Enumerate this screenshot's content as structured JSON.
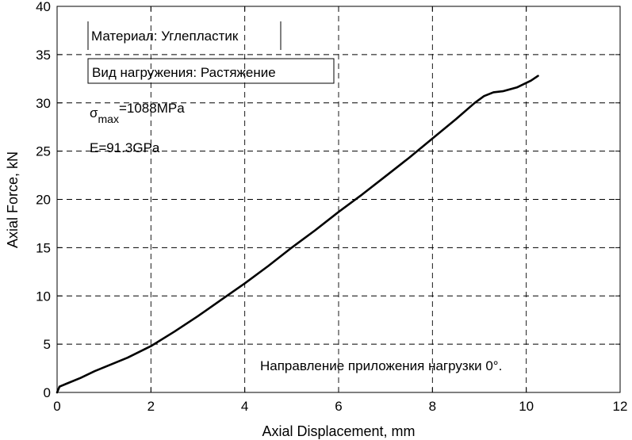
{
  "chart_data": {
    "type": "line",
    "title": "",
    "xlabel": "Axial Displacement, mm",
    "ylabel": "Axial Force, kN",
    "xlim": [
      0,
      12
    ],
    "ylim": [
      0,
      40
    ],
    "x_ticks": [
      0,
      2,
      4,
      6,
      8,
      10,
      12
    ],
    "y_ticks": [
      0,
      5,
      10,
      15,
      20,
      25,
      30,
      35,
      40
    ],
    "grid": true,
    "line_color": "#000000",
    "series": [
      {
        "x": [
          0,
          0.05,
          0.2,
          0.5,
          0.8,
          1.0,
          1.5,
          2.0,
          2.5,
          3.0,
          3.5,
          4.0,
          4.5,
          5.0,
          5.5,
          6.0,
          6.5,
          7.0,
          7.5,
          8.0,
          8.5,
          8.9,
          9.1,
          9.3,
          9.5,
          9.8,
          10.1,
          10.25
        ],
        "y": [
          0.0,
          0.6,
          0.9,
          1.5,
          2.2,
          2.6,
          3.6,
          4.8,
          6.3,
          7.9,
          9.6,
          11.3,
          13.1,
          15.0,
          16.8,
          18.7,
          20.5,
          22.4,
          24.3,
          26.3,
          28.3,
          30.0,
          30.7,
          31.1,
          31.2,
          31.6,
          32.3,
          32.8
        ]
      }
    ],
    "annotations": {
      "material": "Материал: Углепластик",
      "load_type": "Вид нагружения: Растяжение",
      "sigma_symbol": "σ",
      "sigma_sub": "max",
      "sigma_value": "=1088MPa",
      "modulus": "E=91.3GPa",
      "direction": "Направление приложения нагрузки 0°."
    }
  }
}
